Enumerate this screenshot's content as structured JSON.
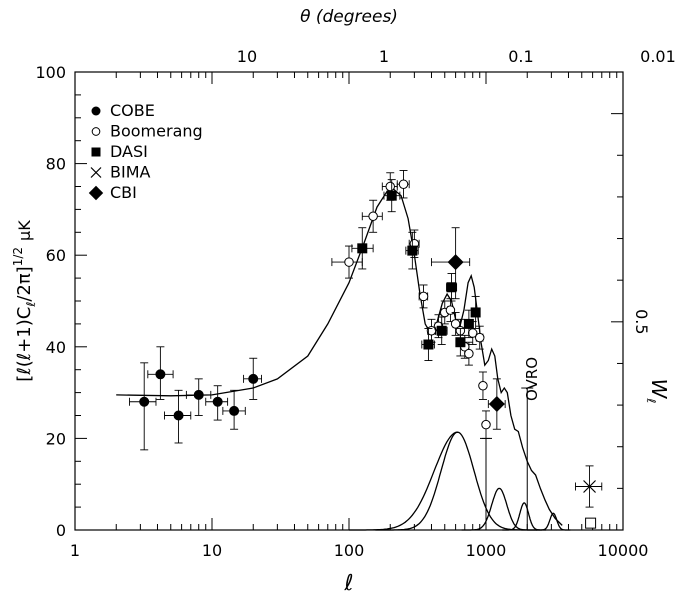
{
  "chart_data": {
    "type": "scatter",
    "xlabel": "ℓ",
    "ylabel_left": "[ℓ(ℓ+1)C",
    "ylabel_left_sub": "ℓ",
    "ylabel_left_mid": "/2π]",
    "ylabel_left_sup": "1/2",
    "ylabel_left_unit": "μK",
    "xlabel_top": "θ (degrees)",
    "ylabel_right": "W",
    "ylabel_right_sub": "ℓ",
    "x_scale": "log",
    "xlim": [
      1,
      10000
    ],
    "ylim": [
      0,
      100
    ],
    "x_ticks": [
      1,
      10,
      100,
      1000,
      10000
    ],
    "x_tick_labels": [
      "1",
      "10",
      "100",
      "1000",
      "10000"
    ],
    "y_ticks": [
      0,
      20,
      40,
      60,
      80,
      100
    ],
    "y_tick_labels": [
      "0",
      "20",
      "40",
      "60",
      "80",
      "100"
    ],
    "top_ticks": [
      10,
      1,
      0.1,
      0.01
    ],
    "top_tick_labels": [
      "10",
      "1",
      "0.1",
      "0.01"
    ],
    "right_ylim": [
      0,
      1.1
    ],
    "right_ticks": [
      0.5
    ],
    "right_tick_labels": [
      "0.5"
    ],
    "annotation": "OVRO",
    "legend_position": "top-left",
    "series": [
      {
        "name": "COBE",
        "marker": "filled-circle",
        "points": [
          {
            "x": 3.2,
            "y": 28,
            "ylo": 17.5,
            "yhi": 36.5,
            "xlo": 2.5,
            "xhi": 3.9
          },
          {
            "x": 4.2,
            "y": 34,
            "ylo": 28.5,
            "yhi": 40,
            "xlo": 3.4,
            "xhi": 5.2
          },
          {
            "x": 5.7,
            "y": 25,
            "ylo": 19,
            "yhi": 30.5,
            "xlo": 4.5,
            "xhi": 7
          },
          {
            "x": 8,
            "y": 29.5,
            "ylo": 25,
            "yhi": 33,
            "xlo": 6.5,
            "xhi": 9.8
          },
          {
            "x": 11,
            "y": 28,
            "ylo": 24,
            "yhi": 31.5,
            "xlo": 9,
            "xhi": 13
          },
          {
            "x": 14.5,
            "y": 26,
            "ylo": 22,
            "yhi": 30.5,
            "xlo": 12,
            "xhi": 17.5
          },
          {
            "x": 20,
            "y": 33,
            "ylo": 28.5,
            "yhi": 37.5,
            "xlo": 17,
            "xhi": 23
          }
        ]
      },
      {
        "name": "Boomerang",
        "marker": "open-circle",
        "points": [
          {
            "x": 100,
            "y": 58.5,
            "ylo": 55,
            "yhi": 62,
            "xlo": 75,
            "xhi": 125
          },
          {
            "x": 150,
            "y": 68.5,
            "ylo": 65,
            "yhi": 72,
            "xlo": 125,
            "xhi": 175
          },
          {
            "x": 200,
            "y": 75,
            "ylo": 72,
            "yhi": 78,
            "xlo": 175,
            "xhi": 225
          },
          {
            "x": 250,
            "y": 75.5,
            "ylo": 72.5,
            "yhi": 78.5,
            "xlo": 225,
            "xhi": 275
          },
          {
            "x": 300,
            "y": 62.5,
            "ylo": 59.5,
            "yhi": 65.5,
            "xlo": 275,
            "xhi": 325
          },
          {
            "x": 350,
            "y": 51,
            "ylo": 48.5,
            "yhi": 53.5,
            "xlo": 325,
            "xhi": 375
          },
          {
            "x": 400,
            "y": 43.5,
            "ylo": 41,
            "yhi": 46,
            "xlo": 375,
            "xhi": 425
          },
          {
            "x": 450,
            "y": 44.5,
            "ylo": 42,
            "yhi": 47,
            "xlo": 425,
            "xhi": 475
          },
          {
            "x": 500,
            "y": 47.5,
            "ylo": 45,
            "yhi": 50,
            "xlo": 475,
            "xhi": 525
          },
          {
            "x": 550,
            "y": 48,
            "ylo": 45.5,
            "yhi": 50.5,
            "xlo": 525,
            "xhi": 575
          },
          {
            "x": 600,
            "y": 45,
            "ylo": 42.5,
            "yhi": 47.5,
            "xlo": 575,
            "xhi": 625
          },
          {
            "x": 650,
            "y": 43.5,
            "ylo": 41,
            "yhi": 46,
            "xlo": 625,
            "xhi": 675
          },
          {
            "x": 700,
            "y": 40,
            "ylo": 37.5,
            "yhi": 42.5,
            "xlo": 675,
            "xhi": 725
          },
          {
            "x": 750,
            "y": 38.5,
            "ylo": 36,
            "yhi": 41,
            "xlo": 725,
            "xhi": 775
          },
          {
            "x": 800,
            "y": 43,
            "ylo": 40.5,
            "yhi": 45.5,
            "xlo": 775,
            "xhi": 825
          },
          {
            "x": 900,
            "y": 42,
            "ylo": 39.5,
            "yhi": 44.5,
            "xlo": 850,
            "xhi": 950
          },
          {
            "x": 950,
            "y": 31.5,
            "ylo": 28.5,
            "yhi": 34.5,
            "xlo": 925,
            "xhi": 975
          },
          {
            "x": 1000,
            "y": 23,
            "ylo": 20,
            "yhi": 26,
            "xlo": 975,
            "xhi": 1025
          }
        ]
      },
      {
        "name": "DASI",
        "marker": "filled-square",
        "points": [
          {
            "x": 125,
            "y": 61.5,
            "ylo": 57,
            "yhi": 66,
            "xlo": 105,
            "xhi": 150
          },
          {
            "x": 205,
            "y": 73,
            "ylo": 69.5,
            "yhi": 76.5,
            "xlo": 180,
            "xhi": 235
          },
          {
            "x": 290,
            "y": 61,
            "ylo": 57,
            "yhi": 65,
            "xlo": 260,
            "xhi": 320
          },
          {
            "x": 380,
            "y": 40.5,
            "ylo": 37,
            "yhi": 44,
            "xlo": 340,
            "xhi": 420
          },
          {
            "x": 475,
            "y": 43.5,
            "ylo": 40.5,
            "yhi": 46.5,
            "xlo": 430,
            "xhi": 520
          },
          {
            "x": 560,
            "y": 53,
            "ylo": 50,
            "yhi": 56,
            "xlo": 515,
            "xhi": 610
          },
          {
            "x": 650,
            "y": 41,
            "ylo": 38,
            "yhi": 44,
            "xlo": 605,
            "xhi": 700
          },
          {
            "x": 750,
            "y": 45,
            "ylo": 42,
            "yhi": 48,
            "xlo": 700,
            "xhi": 800
          },
          {
            "x": 840,
            "y": 47.5,
            "ylo": 44,
            "yhi": 51,
            "xlo": 795,
            "xhi": 890
          }
        ]
      },
      {
        "name": "BIMA",
        "marker": "cross",
        "points": [
          {
            "x": 5700,
            "y": 9.5,
            "ylo": 5,
            "yhi": 14,
            "xlo": 4500,
            "xhi": 7000
          }
        ]
      },
      {
        "name": "CBI",
        "marker": "filled-diamond",
        "points": [
          {
            "x": 600,
            "y": 58.5,
            "ylo": 50.5,
            "yhi": 66,
            "xlo": 400,
            "xhi": 760
          },
          {
            "x": 1200,
            "y": 27.5,
            "ylo": 22,
            "yhi": 33,
            "xlo": 1040,
            "xhi": 1380
          }
        ]
      },
      {
        "name": "",
        "marker": "open-square",
        "points": [
          {
            "x": 5800,
            "y": 1.5
          }
        ]
      }
    ],
    "ovro_limit": {
      "x": 2000,
      "ylo": 0,
      "yhi": 31
    },
    "extra_upper_limit": {
      "x": 1000,
      "ylo": 0,
      "yhi": 20
    },
    "model_curve": [
      [
        2,
        29.5
      ],
      [
        5,
        29.3
      ],
      [
        10,
        29.5
      ],
      [
        20,
        31
      ],
      [
        30,
        33
      ],
      [
        50,
        38
      ],
      [
        70,
        45
      ],
      [
        100,
        54
      ],
      [
        130,
        63
      ],
      [
        160,
        70.5
      ],
      [
        190,
        74
      ],
      [
        210,
        74.5
      ],
      [
        240,
        73
      ],
      [
        270,
        68
      ],
      [
        300,
        60
      ],
      [
        330,
        51.5
      ],
      [
        360,
        45
      ],
      [
        400,
        42.5
      ],
      [
        440,
        45.5
      ],
      [
        480,
        49.5
      ],
      [
        520,
        51.5
      ],
      [
        560,
        50
      ],
      [
        600,
        46
      ],
      [
        640,
        44
      ],
      [
        690,
        48
      ],
      [
        740,
        54
      ],
      [
        780,
        55.5
      ],
      [
        820,
        53
      ],
      [
        870,
        47
      ],
      [
        920,
        41
      ],
      [
        980,
        36
      ],
      [
        1040,
        37
      ],
      [
        1100,
        39.5
      ],
      [
        1160,
        38
      ],
      [
        1220,
        33
      ],
      [
        1290,
        30
      ],
      [
        1360,
        31
      ],
      [
        1430,
        30
      ],
      [
        1520,
        25
      ],
      [
        1620,
        22
      ],
      [
        1720,
        21.5
      ],
      [
        1850,
        18
      ],
      [
        2000,
        15
      ],
      [
        2150,
        13
      ],
      [
        2300,
        12
      ],
      [
        2500,
        9
      ],
      [
        2700,
        6.5
      ],
      [
        2900,
        4.5
      ],
      [
        3200,
        2.5
      ],
      [
        3600,
        1
      ]
    ],
    "window_functions": [
      {
        "center": 620,
        "peak": 0.235,
        "log_width": 0.12
      },
      {
        "center": 1250,
        "peak": 0.1,
        "log_width": 0.055
      },
      {
        "center": 1900,
        "peak": 0.065,
        "log_width": 0.032
      },
      {
        "center": 3100,
        "peak": 0.04,
        "log_width": 0.025
      }
    ],
    "window_function_floor": 0.004
  }
}
